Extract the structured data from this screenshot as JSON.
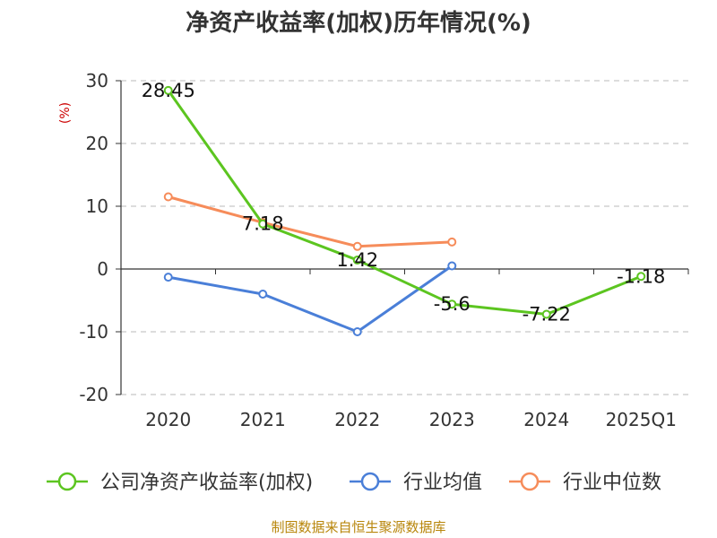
{
  "chart_data": {
    "type": "line",
    "title": "净资产收益率(加权)历年情况(%)",
    "ylabel": "(%)",
    "xlabel": "",
    "categories": [
      "2020",
      "2021",
      "2022",
      "2023",
      "2024",
      "2025Q1"
    ],
    "ylim": [
      -20,
      30
    ],
    "yticks": [
      30,
      20,
      10,
      0,
      -10,
      -20
    ],
    "grid": true,
    "legend_position": "bottom",
    "series": [
      {
        "name": "公司净资产收益率(加权)",
        "color": "#5cc520",
        "values": [
          28.45,
          7.18,
          1.42,
          -5.6,
          -7.22,
          -1.18
        ],
        "labels": [
          "28.45",
          "7.18",
          "1.42",
          "-5.6",
          "-7.22",
          "-1.18"
        ]
      },
      {
        "name": "行业均值",
        "color": "#4a7fd8",
        "values": [
          -1.3,
          -4.0,
          -10.0,
          0.5,
          null,
          null
        ],
        "labels": null
      },
      {
        "name": "行业中位数",
        "color": "#f68c5a",
        "values": [
          11.5,
          7.4,
          3.6,
          4.3,
          null,
          null
        ],
        "labels": null
      }
    ],
    "source": "制图数据来自恒生聚源数据库"
  }
}
